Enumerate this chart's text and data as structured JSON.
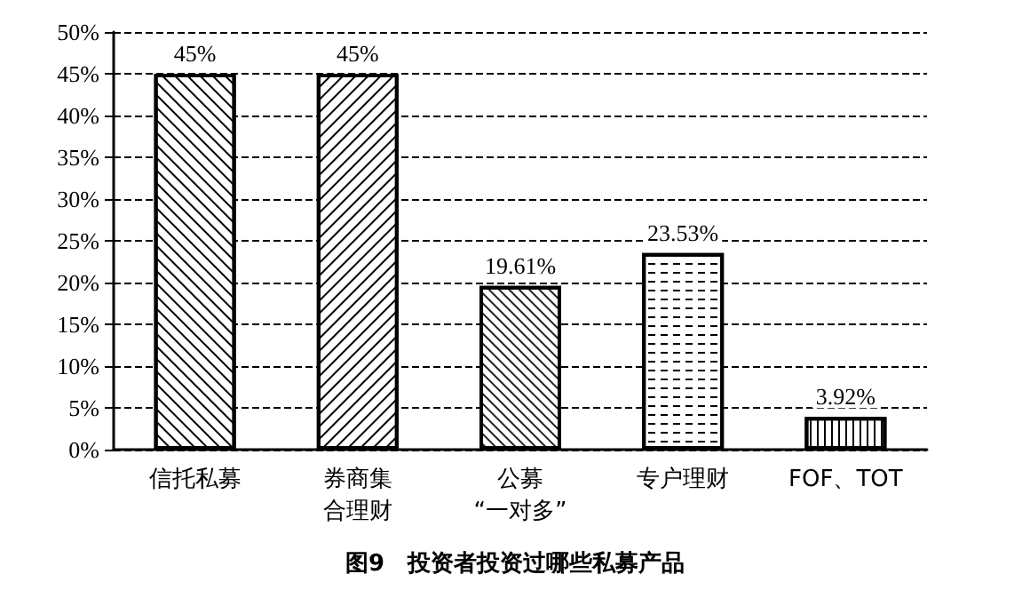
{
  "chart_data": {
    "type": "bar",
    "title": "图9　投资者投资过哪些私募产品",
    "categories": [
      "信托私募",
      "券商集合理财",
      "公募“一对多”",
      "专户理财",
      "FOF、TOT"
    ],
    "values": [
      45,
      45,
      19.61,
      23.53,
      3.92
    ],
    "value_labels": [
      "45%",
      "45%",
      "19.61%",
      "23.53%",
      "3.92%"
    ],
    "colors": [
      "#ffffff",
      "#ffffff",
      "#ffffff",
      "#ffffff",
      "#ffffff"
    ],
    "ylim": [
      0,
      50
    ],
    "yticks": [
      {
        "value": 0,
        "label": "0%"
      },
      {
        "value": 5,
        "label": "5%"
      },
      {
        "value": 10,
        "label": "10%"
      },
      {
        "value": 15,
        "label": "15%"
      },
      {
        "value": 20,
        "label": "20%"
      },
      {
        "value": 25,
        "label": "25%"
      },
      {
        "value": 30,
        "label": "30%"
      },
      {
        "value": 35,
        "label": "35%"
      },
      {
        "value": 40,
        "label": "40%"
      },
      {
        "value": 45,
        "label": "45%"
      },
      {
        "value": 50,
        "label": "50%"
      }
    ],
    "grid": "y"
  }
}
